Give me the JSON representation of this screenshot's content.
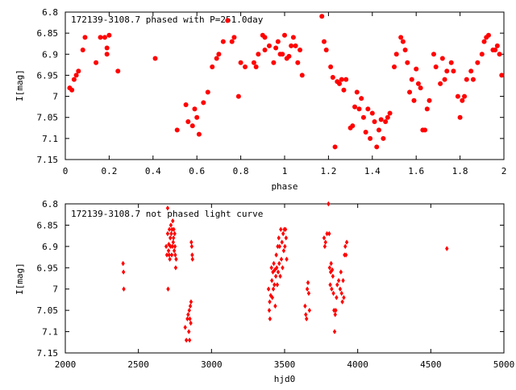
{
  "chart_data": [
    {
      "type": "scatter",
      "title": "172139-3108.7 phased with P=251.0day",
      "xlabel": "phase",
      "ylabel": "I[mag]",
      "xlim": [
        0,
        2
      ],
      "ylim": [
        6.8,
        7.15
      ],
      "y_inverted": true,
      "grid": false,
      "marker_color": "#ff0000",
      "marker": "filled-circle",
      "xticks": [
        "0",
        "0.2",
        "0.4",
        "0.6",
        "0.8",
        "1",
        "1.2",
        "1.4",
        "1.6",
        "1.8",
        "2"
      ],
      "yticks": [
        "6.8",
        "6.85",
        "6.9",
        "6.95",
        "7",
        "7.05",
        "7.1",
        "7.15"
      ],
      "points": [
        [
          0.02,
          6.98
        ],
        [
          0.03,
          6.985
        ],
        [
          0.04,
          6.96
        ],
        [
          0.05,
          6.95
        ],
        [
          0.06,
          6.94
        ],
        [
          0.08,
          6.89
        ],
        [
          0.09,
          6.86
        ],
        [
          0.14,
          6.92
        ],
        [
          0.16,
          6.86
        ],
        [
          0.18,
          6.86
        ],
        [
          0.19,
          6.9
        ],
        [
          0.2,
          6.855
        ],
        [
          0.19,
          6.885
        ],
        [
          0.24,
          6.94
        ],
        [
          0.41,
          6.91
        ],
        [
          0.51,
          7.08
        ],
        [
          0.55,
          7.02
        ],
        [
          0.56,
          7.06
        ],
        [
          0.58,
          7.07
        ],
        [
          0.59,
          7.03
        ],
        [
          0.6,
          7.05
        ],
        [
          0.61,
          7.09
        ],
        [
          0.63,
          7.015
        ],
        [
          0.65,
          6.99
        ],
        [
          0.67,
          6.93
        ],
        [
          0.69,
          6.91
        ],
        [
          0.7,
          6.9
        ],
        [
          0.72,
          6.87
        ],
        [
          0.74,
          6.82
        ],
        [
          0.76,
          6.87
        ],
        [
          0.77,
          6.86
        ],
        [
          0.79,
          7.0
        ],
        [
          0.8,
          6.92
        ],
        [
          0.82,
          6.93
        ],
        [
          0.86,
          6.92
        ],
        [
          0.87,
          6.93
        ],
        [
          0.88,
          6.9
        ],
        [
          0.9,
          6.855
        ],
        [
          0.91,
          6.86
        ],
        [
          0.91,
          6.89
        ],
        [
          0.93,
          6.88
        ],
        [
          0.95,
          6.92
        ],
        [
          0.96,
          6.885
        ],
        [
          0.97,
          6.87
        ],
        [
          0.98,
          6.9
        ],
        [
          0.99,
          6.9
        ],
        [
          1.0,
          6.855
        ],
        [
          1.01,
          6.91
        ],
        [
          1.02,
          6.905
        ],
        [
          1.03,
          6.88
        ],
        [
          1.04,
          6.86
        ],
        [
          1.05,
          6.88
        ],
        [
          1.06,
          6.92
        ],
        [
          1.07,
          6.89
        ],
        [
          1.08,
          6.95
        ],
        [
          1.17,
          6.81
        ],
        [
          1.18,
          6.87
        ],
        [
          1.19,
          6.89
        ],
        [
          1.21,
          6.93
        ],
        [
          1.22,
          6.955
        ],
        [
          1.23,
          7.12
        ],
        [
          1.24,
          6.965
        ],
        [
          1.25,
          6.97
        ],
        [
          1.26,
          6.96
        ],
        [
          1.27,
          6.985
        ],
        [
          1.28,
          6.96
        ],
        [
          1.3,
          7.075
        ],
        [
          1.31,
          7.07
        ],
        [
          1.32,
          7.025
        ],
        [
          1.33,
          6.99
        ],
        [
          1.34,
          7.03
        ],
        [
          1.35,
          7.005
        ],
        [
          1.36,
          7.05
        ],
        [
          1.37,
          7.085
        ],
        [
          1.38,
          7.03
        ],
        [
          1.39,
          7.1
        ],
        [
          1.4,
          7.04
        ],
        [
          1.41,
          7.06
        ],
        [
          1.42,
          7.12
        ],
        [
          1.43,
          7.08
        ],
        [
          1.44,
          7.055
        ],
        [
          1.45,
          7.1
        ],
        [
          1.46,
          7.06
        ],
        [
          1.47,
          7.05
        ],
        [
          1.48,
          7.04
        ],
        [
          1.5,
          6.93
        ],
        [
          1.51,
          6.9
        ],
        [
          1.53,
          6.86
        ],
        [
          1.54,
          6.87
        ],
        [
          1.55,
          6.89
        ],
        [
          1.56,
          6.92
        ],
        [
          1.57,
          6.99
        ],
        [
          1.58,
          6.96
        ],
        [
          1.59,
          7.01
        ],
        [
          1.6,
          6.935
        ],
        [
          1.61,
          6.97
        ],
        [
          1.62,
          6.98
        ],
        [
          1.63,
          7.08
        ],
        [
          1.64,
          7.08
        ],
        [
          1.65,
          7.03
        ],
        [
          1.66,
          7.01
        ],
        [
          1.68,
          6.9
        ],
        [
          1.69,
          6.93
        ],
        [
          1.71,
          6.97
        ],
        [
          1.72,
          6.91
        ],
        [
          1.73,
          6.96
        ],
        [
          1.74,
          6.94
        ],
        [
          1.76,
          6.92
        ],
        [
          1.77,
          6.94
        ],
        [
          1.79,
          7.0
        ],
        [
          1.8,
          7.05
        ],
        [
          1.81,
          7.01
        ],
        [
          1.82,
          7.0
        ],
        [
          1.83,
          6.96
        ],
        [
          1.85,
          6.94
        ],
        [
          1.86,
          6.96
        ],
        [
          1.88,
          6.92
        ],
        [
          1.9,
          6.9
        ],
        [
          1.91,
          6.87
        ],
        [
          1.92,
          6.86
        ],
        [
          1.93,
          6.855
        ],
        [
          1.95,
          6.89
        ],
        [
          1.96,
          6.89
        ],
        [
          1.97,
          6.88
        ],
        [
          1.98,
          6.9
        ],
        [
          1.99,
          6.95
        ]
      ]
    },
    {
      "type": "scatter",
      "title": "172139-3108.7 not phased light curve",
      "xlabel": "hjd0",
      "ylabel": "I[mag]",
      "xlim": [
        2000,
        5000
      ],
      "ylim": [
        6.8,
        7.15
      ],
      "y_inverted": true,
      "grid": false,
      "marker_color": "#ff0000",
      "marker": "filled-diamond",
      "xticks": [
        "2000",
        "2500",
        "3000",
        "3500",
        "4000",
        "4500",
        "5000"
      ],
      "yticks": [
        "6.8",
        "6.85",
        "6.9",
        "6.95",
        "7",
        "7.05",
        "7.1",
        "7.15"
      ],
      "points": [
        [
          2395,
          6.94
        ],
        [
          2398,
          6.96
        ],
        [
          2400,
          7.0
        ],
        [
          2690,
          6.9
        ],
        [
          2695,
          6.92
        ],
        [
          2700,
          6.87
        ],
        [
          2700,
          6.81
        ],
        [
          2703,
          7.0
        ],
        [
          2706,
          6.91
        ],
        [
          2708,
          6.895
        ],
        [
          2710,
          6.92
        ],
        [
          2712,
          6.86
        ],
        [
          2715,
          6.93
        ],
        [
          2718,
          6.88
        ],
        [
          2720,
          6.9
        ],
        [
          2722,
          6.85
        ],
        [
          2725,
          6.87
        ],
        [
          2728,
          6.92
        ],
        [
          2730,
          6.86
        ],
        [
          2733,
          6.9
        ],
        [
          2735,
          6.84
        ],
        [
          2738,
          6.89
        ],
        [
          2740,
          6.88
        ],
        [
          2742,
          6.86
        ],
        [
          2745,
          6.91
        ],
        [
          2748,
          6.87
        ],
        [
          2750,
          6.9
        ],
        [
          2752,
          6.92
        ],
        [
          2755,
          6.95
        ],
        [
          2758,
          6.93
        ],
        [
          2820,
          7.09
        ],
        [
          2828,
          7.12
        ],
        [
          2835,
          7.07
        ],
        [
          2840,
          7.06
        ],
        [
          2845,
          7.1
        ],
        [
          2848,
          7.05
        ],
        [
          2850,
          7.12
        ],
        [
          2852,
          7.07
        ],
        [
          2855,
          7.04
        ],
        [
          2858,
          7.08
        ],
        [
          2860,
          7.03
        ],
        [
          2862,
          6.89
        ],
        [
          2865,
          6.9
        ],
        [
          2868,
          6.92
        ],
        [
          2870,
          6.93
        ],
        [
          3390,
          7.0
        ],
        [
          3395,
          7.05
        ],
        [
          3398,
          7.03
        ],
        [
          3400,
          7.07
        ],
        [
          3405,
          7.015
        ],
        [
          3410,
          6.95
        ],
        [
          3413,
          6.98
        ],
        [
          3416,
          7.02
        ],
        [
          3420,
          6.96
        ],
        [
          3423,
          7.0
        ],
        [
          3426,
          6.94
        ],
        [
          3430,
          6.99
        ],
        [
          3433,
          6.955
        ],
        [
          3436,
          7.04
        ],
        [
          3440,
          6.97
        ],
        [
          3443,
          6.92
        ],
        [
          3446,
          6.95
        ],
        [
          3450,
          6.99
        ],
        [
          3453,
          6.9
        ],
        [
          3456,
          6.96
        ],
        [
          3460,
          6.88
        ],
        [
          3463,
          6.94
        ],
        [
          3466,
          6.9
        ],
        [
          3470,
          6.97
        ],
        [
          3474,
          6.86
        ],
        [
          3478,
          6.93
        ],
        [
          3482,
          6.89
        ],
        [
          3486,
          6.95
        ],
        [
          3490,
          6.87
        ],
        [
          3494,
          6.91
        ],
        [
          3498,
          6.86
        ],
        [
          3502,
          6.9
        ],
        [
          3506,
          6.86
        ],
        [
          3510,
          6.88
        ],
        [
          3514,
          6.93
        ],
        [
          3640,
          7.04
        ],
        [
          3645,
          7.06
        ],
        [
          3650,
          7.07
        ],
        [
          3655,
          7.0
        ],
        [
          3660,
          6.985
        ],
        [
          3665,
          7.01
        ],
        [
          3670,
          7.05
        ],
        [
          3770,
          6.88
        ],
        [
          3775,
          6.9
        ],
        [
          3780,
          6.89
        ],
        [
          3790,
          6.87
        ],
        [
          3800,
          6.8
        ],
        [
          3805,
          6.87
        ],
        [
          3808,
          6.95
        ],
        [
          3812,
          6.99
        ],
        [
          3815,
          6.96
        ],
        [
          3818,
          6.94
        ],
        [
          3822,
          7.0
        ],
        [
          3826,
          6.955
        ],
        [
          3830,
          6.97
        ],
        [
          3834,
          7.01
        ],
        [
          3838,
          7.05
        ],
        [
          3842,
          7.1
        ],
        [
          3846,
          7.06
        ],
        [
          3850,
          7.05
        ],
        [
          3855,
          7.02
        ],
        [
          3860,
          6.99
        ],
        [
          3870,
          6.98
        ],
        [
          3880,
          7.0
        ],
        [
          3885,
          6.96
        ],
        [
          3890,
          7.01
        ],
        [
          3895,
          7.03
        ],
        [
          3900,
          6.98
        ],
        [
          3905,
          7.02
        ],
        [
          3910,
          6.92
        ],
        [
          3915,
          6.9
        ],
        [
          3920,
          6.92
        ],
        [
          3925,
          6.89
        ],
        [
          4610,
          6.905
        ]
      ]
    }
  ]
}
